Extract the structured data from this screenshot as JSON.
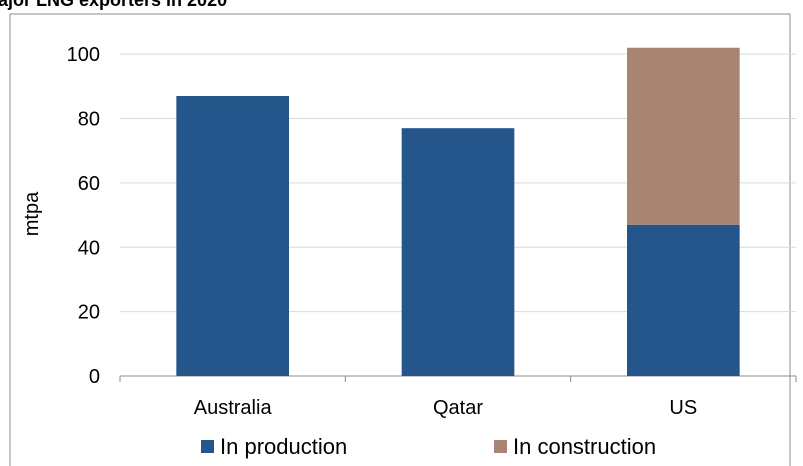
{
  "chart_data": {
    "type": "bar",
    "stacked": true,
    "title": "ajor LNG exporters in 2020",
    "ylabel": "mtpa",
    "xlabel": "",
    "ylim": [
      0,
      110
    ],
    "yticks": [
      0,
      20,
      40,
      60,
      80,
      100
    ],
    "categories": [
      "Australia",
      "Qatar",
      "US"
    ],
    "series": [
      {
        "name": "In production",
        "values": [
          87,
          77,
          47
        ],
        "color": "#24558B"
      },
      {
        "name": "In construction",
        "values": [
          0,
          0,
          55
        ],
        "color": "#A88473"
      }
    ],
    "grid": true,
    "legend_position": "bottom"
  }
}
